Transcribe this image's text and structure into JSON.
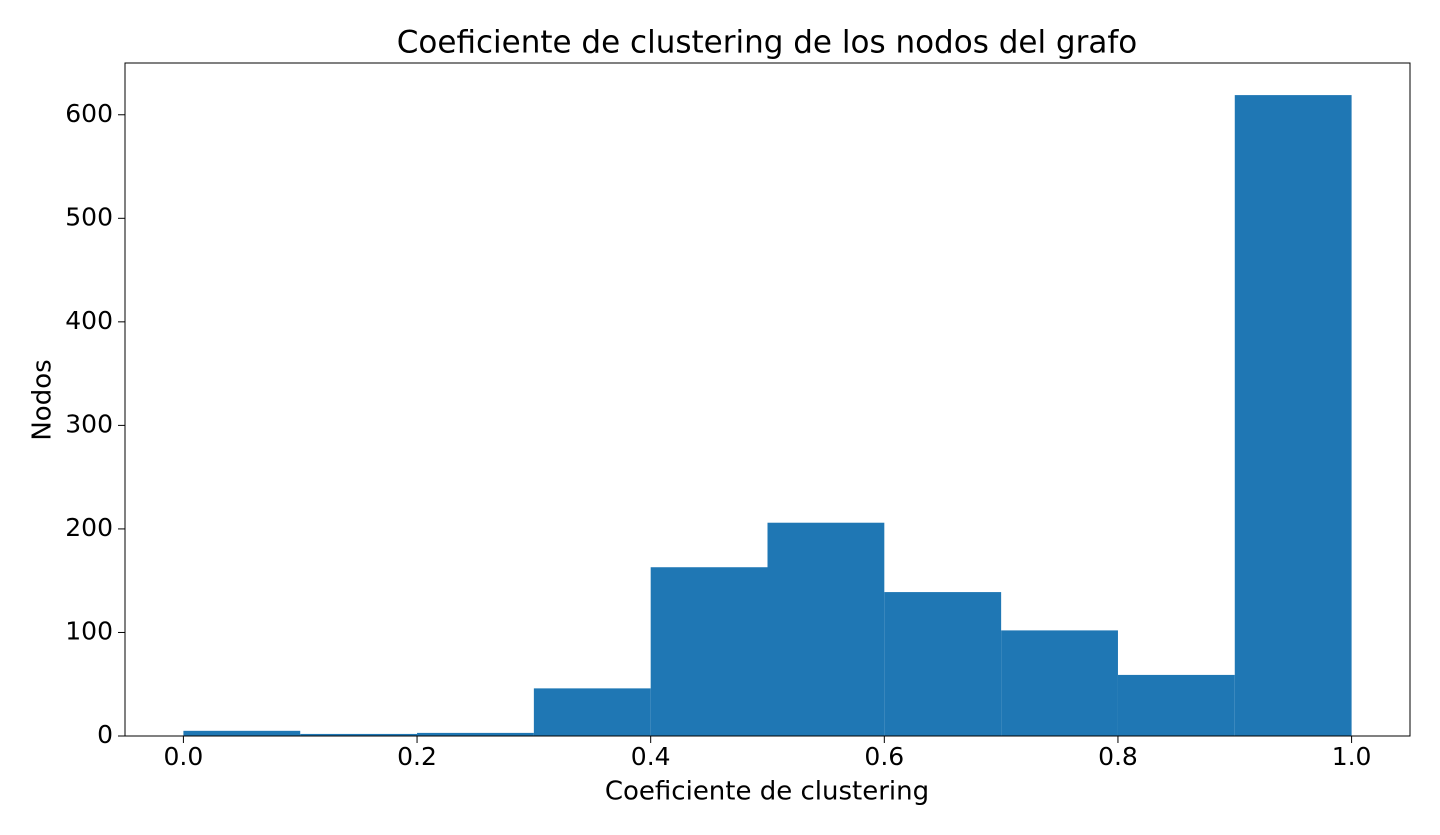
{
  "chart_data": {
    "type": "histogram",
    "title": "Coeficiente de clustering de los nodos del grafo",
    "xlabel": "Coeficiente de clustering",
    "ylabel": "Nodos",
    "bins": [
      0,
      0.1,
      0.2,
      0.3,
      0.4,
      0.5,
      0.6,
      0.7,
      0.8,
      0.9,
      1.0
    ],
    "values": [
      5,
      2,
      3,
      46,
      163,
      206,
      139,
      102,
      59,
      619
    ],
    "color": "#1f77b4",
    "xlim": [
      -0.05,
      1.05
    ],
    "ylim": [
      0,
      650
    ],
    "xticks": [
      {
        "value": 0,
        "label": "0.0"
      },
      0.2,
      0.4,
      0.6,
      0.8,
      {
        "value": 1,
        "label": "1.0"
      }
    ],
    "yticks": [
      0,
      100,
      200,
      300,
      400,
      500,
      600
    ],
    "grid": false
  }
}
